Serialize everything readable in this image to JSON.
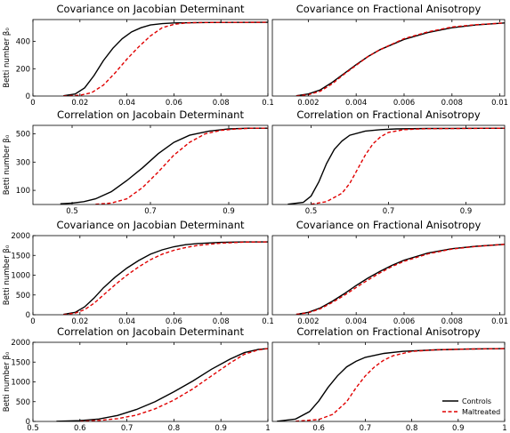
{
  "chart_data": [
    {
      "type": "line",
      "title": "Covariance on Jacobian Determinant",
      "ylabel": "Betti number β₀",
      "xlabel": "",
      "xlim": [
        0,
        0.1
      ],
      "ylim": [
        0,
        560
      ],
      "xticks": [
        0,
        0.02,
        0.04,
        0.06,
        0.08,
        0.1
      ],
      "xtick_labels": [
        "0",
        "0.02",
        "0.04",
        "0.06",
        "0.08",
        "0.1"
      ],
      "yticks": [
        0,
        200,
        400
      ],
      "ytick_labels": [
        "0",
        "200",
        "400"
      ],
      "series": [
        {
          "name": "Controls",
          "color": "#000000",
          "dash": "solid",
          "x": [
            0.013,
            0.018,
            0.022,
            0.026,
            0.03,
            0.034,
            0.038,
            0.042,
            0.046,
            0.05,
            0.055,
            0.06,
            0.07,
            0.08,
            0.1
          ],
          "y": [
            2,
            15,
            60,
            150,
            260,
            350,
            420,
            470,
            500,
            520,
            530,
            535,
            538,
            539,
            540
          ]
        },
        {
          "name": "Maltreated",
          "color": "#e00000",
          "dash": "dashed",
          "x": [
            0.013,
            0.02,
            0.025,
            0.03,
            0.035,
            0.04,
            0.045,
            0.05,
            0.055,
            0.06,
            0.065,
            0.07,
            0.08,
            0.1
          ],
          "y": [
            1,
            5,
            25,
            80,
            170,
            270,
            360,
            440,
            500,
            525,
            535,
            538,
            539,
            540
          ]
        }
      ]
    },
    {
      "type": "line",
      "title": "Covariance on Fractional Anisotropy",
      "ylabel": "",
      "xlabel": "",
      "xlim": [
        0.0005,
        0.0102
      ],
      "ylim": [
        0,
        560
      ],
      "xticks": [
        0.002,
        0.004,
        0.006,
        0.008,
        0.01
      ],
      "xtick_labels": [
        "0.002",
        "0.004",
        "0.006",
        "0.008",
        "0.01"
      ],
      "yticks": [],
      "ytick_labels": [],
      "series": [
        {
          "name": "Controls",
          "color": "#000000",
          "dash": "solid",
          "x": [
            0.0015,
            0.002,
            0.0025,
            0.003,
            0.0035,
            0.004,
            0.0045,
            0.005,
            0.006,
            0.007,
            0.008,
            0.009,
            0.0102
          ],
          "y": [
            2,
            15,
            45,
            100,
            165,
            230,
            290,
            340,
            415,
            465,
            500,
            520,
            535
          ]
        },
        {
          "name": "Maltreated",
          "color": "#e00000",
          "dash": "dashed",
          "x": [
            0.0015,
            0.002,
            0.0025,
            0.003,
            0.0035,
            0.004,
            0.0045,
            0.005,
            0.006,
            0.007,
            0.008,
            0.009,
            0.0102
          ],
          "y": [
            1,
            10,
            35,
            90,
            160,
            225,
            290,
            340,
            420,
            470,
            505,
            522,
            535
          ]
        }
      ]
    },
    {
      "type": "line",
      "title": "Correlation on Jacobain Determinant",
      "ylabel": "Betti number β₀",
      "xlabel": "",
      "xlim": [
        0.4,
        1.0
      ],
      "ylim": [
        0,
        560
      ],
      "xticks": [
        0.5,
        0.7,
        0.9
      ],
      "xtick_labels": [
        "0.5",
        "0.7",
        "0.9"
      ],
      "yticks": [
        100,
        300,
        500
      ],
      "ytick_labels": [
        "100",
        "300",
        "500"
      ],
      "series": [
        {
          "name": "Controls",
          "color": "#000000",
          "dash": "solid",
          "x": [
            0.47,
            0.5,
            0.53,
            0.56,
            0.6,
            0.64,
            0.68,
            0.72,
            0.76,
            0.8,
            0.85,
            0.9,
            0.95,
            1.0
          ],
          "y": [
            5,
            10,
            20,
            40,
            90,
            170,
            260,
            360,
            440,
            490,
            520,
            535,
            540,
            540
          ]
        },
        {
          "name": "Maltreated",
          "color": "#e00000",
          "dash": "dashed",
          "x": [
            0.56,
            0.6,
            0.64,
            0.68,
            0.72,
            0.76,
            0.8,
            0.84,
            0.88,
            0.92,
            0.96,
            1.0
          ],
          "y": [
            2,
            10,
            40,
            120,
            230,
            350,
            440,
            500,
            525,
            535,
            540,
            540
          ]
        }
      ]
    },
    {
      "type": "line",
      "title": "Correlation on Fractional Anisotropy",
      "ylabel": "",
      "xlabel": "",
      "xlim": [
        0.4,
        1.0
      ],
      "ylim": [
        0,
        560
      ],
      "xticks": [
        0.5,
        0.7,
        0.9
      ],
      "xtick_labels": [
        "0.5",
        "0.7",
        "0.9"
      ],
      "yticks": [],
      "ytick_labels": [],
      "series": [
        {
          "name": "Controls",
          "color": "#000000",
          "dash": "solid",
          "x": [
            0.44,
            0.48,
            0.5,
            0.52,
            0.54,
            0.56,
            0.58,
            0.6,
            0.64,
            0.68,
            0.72,
            0.8,
            1.0
          ],
          "y": [
            2,
            15,
            60,
            160,
            290,
            390,
            450,
            490,
            520,
            530,
            535,
            538,
            540
          ]
        },
        {
          "name": "Maltreated",
          "color": "#e00000",
          "dash": "dashed",
          "x": [
            0.5,
            0.54,
            0.58,
            0.6,
            0.62,
            0.64,
            0.66,
            0.68,
            0.7,
            0.74,
            0.8,
            1.0
          ],
          "y": [
            2,
            20,
            80,
            150,
            250,
            350,
            430,
            480,
            510,
            530,
            537,
            540
          ]
        }
      ]
    },
    {
      "type": "line",
      "title": "Covariance on Jacobian Determinant",
      "ylabel": "Betti number β₀",
      "xlabel": "",
      "xlim": [
        0,
        0.1
      ],
      "ylim": [
        0,
        2000
      ],
      "xticks": [
        0,
        0.02,
        0.04,
        0.06,
        0.08,
        0.1
      ],
      "xtick_labels": [
        "0",
        "0.02",
        "0.04",
        "0.06",
        "0.08",
        "0.1"
      ],
      "yticks": [
        0,
        500,
        1000,
        1500,
        2000
      ],
      "ytick_labels": [
        "0",
        "500",
        "1000",
        "1500",
        "2000"
      ],
      "series": [
        {
          "name": "Controls",
          "color": "#000000",
          "dash": "solid",
          "x": [
            0.013,
            0.018,
            0.022,
            0.026,
            0.03,
            0.035,
            0.04,
            0.045,
            0.05,
            0.055,
            0.06,
            0.065,
            0.07,
            0.08,
            0.09,
            0.1
          ],
          "y": [
            10,
            60,
            200,
            420,
            680,
            950,
            1180,
            1370,
            1530,
            1640,
            1720,
            1770,
            1800,
            1830,
            1840,
            1840
          ]
        },
        {
          "name": "Maltreated",
          "color": "#e00000",
          "dash": "dashed",
          "x": [
            0.013,
            0.018,
            0.022,
            0.026,
            0.03,
            0.035,
            0.04,
            0.045,
            0.05,
            0.055,
            0.06,
            0.065,
            0.07,
            0.08,
            0.09,
            0.1
          ],
          "y": [
            5,
            40,
            130,
            290,
            500,
            760,
            1000,
            1210,
            1390,
            1530,
            1630,
            1700,
            1750,
            1810,
            1835,
            1840
          ]
        }
      ]
    },
    {
      "type": "line",
      "title": "Covariance on Fractional Anisotropy",
      "ylabel": "",
      "xlabel": "",
      "xlim": [
        0.0005,
        0.0102
      ],
      "ylim": [
        0,
        2000
      ],
      "xticks": [
        0.002,
        0.004,
        0.006,
        0.008,
        0.01
      ],
      "xtick_labels": [
        "0.002",
        "0.004",
        "0.006",
        "0.008",
        "0.01"
      ],
      "yticks": [],
      "ytick_labels": [],
      "series": [
        {
          "name": "Controls",
          "color": "#000000",
          "dash": "solid",
          "x": [
            0.0015,
            0.002,
            0.0025,
            0.003,
            0.0035,
            0.004,
            0.0045,
            0.005,
            0.0055,
            0.006,
            0.007,
            0.008,
            0.009,
            0.0102
          ],
          "y": [
            10,
            60,
            170,
            340,
            530,
            740,
            930,
            1100,
            1250,
            1380,
            1560,
            1670,
            1730,
            1780
          ]
        },
        {
          "name": "Maltreated",
          "color": "#e00000",
          "dash": "dashed",
          "x": [
            0.0015,
            0.002,
            0.0025,
            0.003,
            0.0035,
            0.004,
            0.0045,
            0.005,
            0.0055,
            0.006,
            0.007,
            0.008,
            0.009,
            0.0102
          ],
          "y": [
            8,
            50,
            150,
            310,
            490,
            690,
            880,
            1060,
            1220,
            1350,
            1540,
            1660,
            1725,
            1780
          ]
        }
      ]
    },
    {
      "type": "line",
      "title": "Correlation on Jacobain Determinant",
      "ylabel": "Betti number β₀",
      "xlabel": "",
      "xlim": [
        0.5,
        1.0
      ],
      "ylim": [
        0,
        2000
      ],
      "xticks": [
        0.5,
        0.6,
        0.7,
        0.8,
        0.9,
        1.0
      ],
      "xtick_labels": [
        "0.5",
        "0.6",
        "0.7",
        "0.8",
        "0.9",
        "1"
      ],
      "yticks": [
        0,
        500,
        1000,
        1500,
        2000
      ],
      "ytick_labels": [
        "0",
        "500",
        "1000",
        "1500",
        "2000"
      ],
      "series": [
        {
          "name": "Controls",
          "color": "#000000",
          "dash": "solid",
          "x": [
            0.55,
            0.6,
            0.64,
            0.68,
            0.72,
            0.76,
            0.8,
            0.84,
            0.88,
            0.92,
            0.95,
            0.98,
            1.0
          ],
          "y": [
            5,
            20,
            60,
            150,
            300,
            500,
            750,
            1020,
            1320,
            1580,
            1740,
            1820,
            1840
          ]
        },
        {
          "name": "Maltreated",
          "color": "#e00000",
          "dash": "dashed",
          "x": [
            0.6,
            0.64,
            0.68,
            0.72,
            0.76,
            0.8,
            0.84,
            0.88,
            0.92,
            0.95,
            0.98,
            1.0
          ],
          "y": [
            5,
            25,
            70,
            160,
            320,
            540,
            820,
            1150,
            1480,
            1700,
            1810,
            1840
          ]
        }
      ]
    },
    {
      "type": "line",
      "title": "Correlation on Fractional Anisotropy",
      "ylabel": "",
      "xlabel": "",
      "xlim": [
        0.5,
        1.0
      ],
      "ylim": [
        0,
        2000
      ],
      "xticks": [
        0.6,
        0.7,
        0.8,
        0.9,
        1.0
      ],
      "xtick_labels": [
        "0.6",
        "0.7",
        "0.8",
        "0.9",
        "1"
      ],
      "yticks": [],
      "ytick_labels": [],
      "series": [
        {
          "name": "Controls",
          "color": "#000000",
          "dash": "solid",
          "x": [
            0.51,
            0.55,
            0.58,
            0.6,
            0.62,
            0.64,
            0.66,
            0.68,
            0.7,
            0.74,
            0.78,
            0.85,
            0.92,
            1.0
          ],
          "y": [
            5,
            60,
            250,
            520,
            860,
            1150,
            1380,
            1520,
            1620,
            1720,
            1770,
            1810,
            1830,
            1840
          ]
        },
        {
          "name": "Maltreated",
          "color": "#e00000",
          "dash": "dashed",
          "x": [
            0.55,
            0.6,
            0.63,
            0.66,
            0.68,
            0.7,
            0.72,
            0.74,
            0.76,
            0.8,
            0.85,
            0.92,
            1.0
          ],
          "y": [
            5,
            50,
            180,
            500,
            850,
            1150,
            1380,
            1550,
            1660,
            1770,
            1810,
            1830,
            1840
          ]
        }
      ]
    }
  ],
  "legend": {
    "placement": "bottom-right",
    "items": [
      {
        "label": "Controls",
        "color": "#000000",
        "dash": "solid"
      },
      {
        "label": "Maltreated",
        "color": "#e00000",
        "dash": "dashed"
      }
    ]
  }
}
